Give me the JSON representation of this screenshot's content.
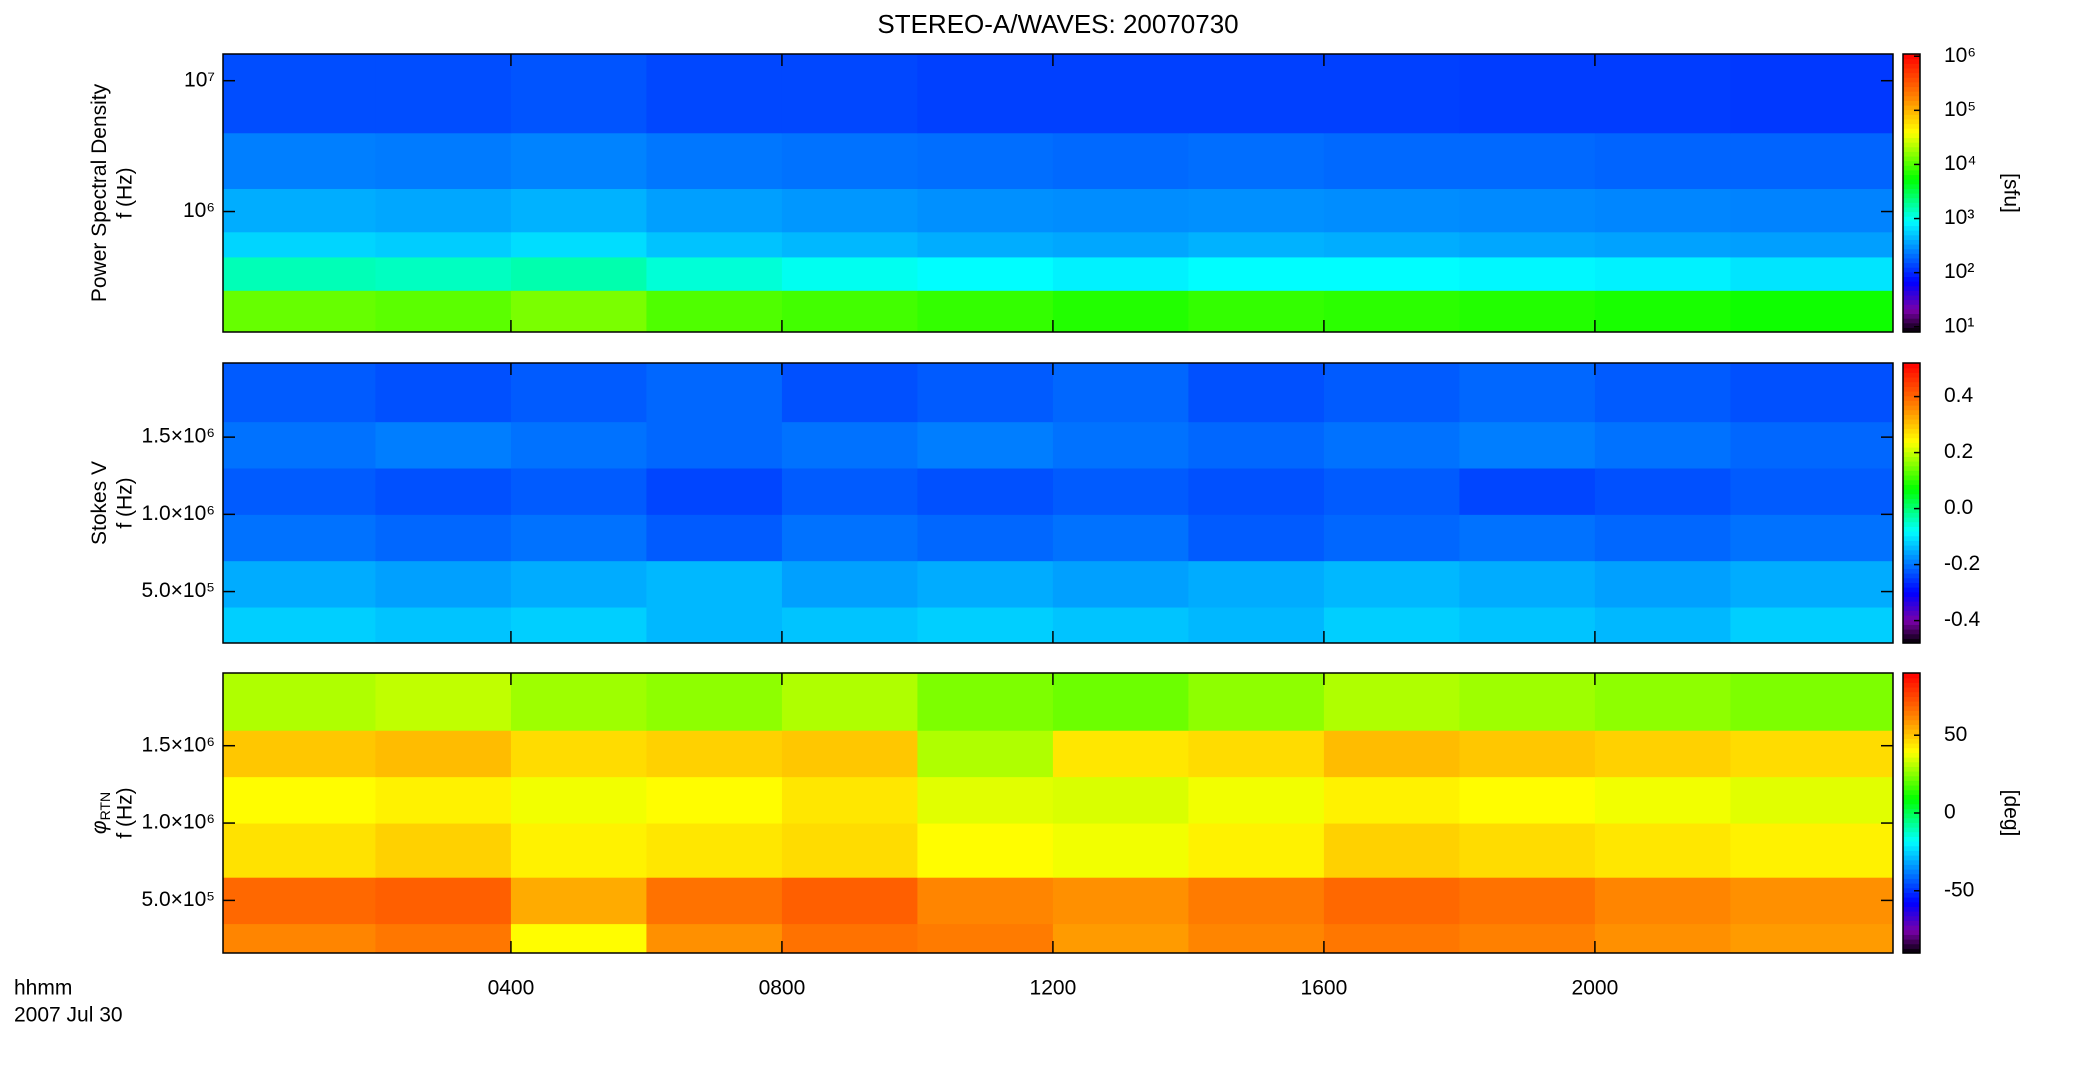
{
  "title": "STEREO-A/WAVES: 20070730",
  "x_axis": {
    "xlim": [
      -0.25,
      24.4
    ],
    "xticks": [
      {
        "value": 4,
        "label": "0400"
      },
      {
        "value": 8,
        "label": "0800"
      },
      {
        "value": 12,
        "label": "1200"
      },
      {
        "value": 16,
        "label": "1600"
      },
      {
        "value": 20,
        "label": "2000"
      }
    ],
    "xbins": [
      -0.25,
      2,
      4,
      6,
      8,
      10,
      12,
      14,
      16,
      18,
      20,
      22,
      24.4
    ],
    "label": "hhmm",
    "date": "2007 Jul 30"
  },
  "chart_data": [
    {
      "type": "heatmap",
      "quantity": "Power Spectral Density",
      "ylabel": "f (Hz)",
      "ylog": true,
      "ylim": [
        120000,
        16000000
      ],
      "yticks": [
        {
          "value": 1000000,
          "label": "10⁶"
        },
        {
          "value": 10000000,
          "label": "10⁷"
        }
      ],
      "ybins": [
        120000,
        250000,
        450000,
        700000,
        1500000,
        4000000,
        16000000
      ],
      "z": [
        [
          12000,
          11000,
          14000,
          10000,
          9000,
          8000,
          7000,
          8000,
          7500,
          7000,
          6500,
          6000
        ],
        [
          1500,
          1400,
          1600,
          1200,
          1000,
          900,
          800,
          900,
          900,
          850,
          800,
          700
        ],
        [
          600,
          550,
          650,
          500,
          450,
          400,
          380,
          420,
          400,
          380,
          360,
          350
        ],
        [
          400,
          380,
          420,
          350,
          320,
          300,
          290,
          300,
          290,
          280,
          270,
          260
        ],
        [
          250,
          240,
          260,
          230,
          220,
          210,
          200,
          210,
          200,
          200,
          190,
          190
        ],
        [
          150,
          150,
          160,
          140,
          140,
          130,
          130,
          130,
          130,
          125,
          125,
          120
        ]
      ],
      "colormap": "rainbow",
      "clog": true,
      "clim": [
        8,
        1100000
      ],
      "cticks": [
        {
          "value": 10,
          "label": "10¹"
        },
        {
          "value": 100,
          "label": "10²"
        },
        {
          "value": 1000,
          "label": "10³"
        },
        {
          "value": 10000,
          "label": "10⁴"
        },
        {
          "value": 100000,
          "label": "10⁵"
        },
        {
          "value": 1000000,
          "label": "10⁶"
        }
      ],
      "clabel": "[sfu]"
    },
    {
      "type": "heatmap",
      "quantity": "Stokes V",
      "ylabel": "f (Hz)",
      "ylog": false,
      "ylim": [
        167000,
        1980000
      ],
      "yticks": [
        {
          "value": 500000,
          "label": "5.0×10⁵"
        },
        {
          "value": 1000000,
          "label": "1.0×10⁶"
        },
        {
          "value": 1500000,
          "label": "1.5×10⁶"
        }
      ],
      "ybins": [
        167000,
        400000,
        700000,
        1000000,
        1300000,
        1600000,
        1980000
      ],
      "z": [
        [
          -0.12,
          -0.13,
          -0.12,
          -0.14,
          -0.13,
          -0.12,
          -0.13,
          -0.14,
          -0.12,
          -0.13,
          -0.14,
          -0.12
        ],
        [
          -0.15,
          -0.16,
          -0.15,
          -0.14,
          -0.16,
          -0.15,
          -0.16,
          -0.15,
          -0.14,
          -0.15,
          -0.16,
          -0.15
        ],
        [
          -0.2,
          -0.21,
          -0.2,
          -0.22,
          -0.2,
          -0.21,
          -0.2,
          -0.22,
          -0.21,
          -0.2,
          -0.21,
          -0.2
        ],
        [
          -0.22,
          -0.23,
          -0.22,
          -0.24,
          -0.22,
          -0.23,
          -0.22,
          -0.23,
          -0.22,
          -0.24,
          -0.23,
          -0.22
        ],
        [
          -0.2,
          -0.19,
          -0.2,
          -0.21,
          -0.2,
          -0.19,
          -0.2,
          -0.21,
          -0.2,
          -0.19,
          -0.2,
          -0.21
        ],
        [
          -0.22,
          -0.23,
          -0.22,
          -0.21,
          -0.23,
          -0.22,
          -0.21,
          -0.23,
          -0.22,
          -0.21,
          -0.22,
          -0.23
        ]
      ],
      "colormap": "rainbow",
      "clog": false,
      "clim": [
        -0.48,
        0.52
      ],
      "cticks": [
        -0.4,
        -0.2,
        {
          "value": 0,
          "label": "0.0"
        },
        0.2,
        0.4
      ]
    },
    {
      "type": "heatmap",
      "quantity": "φ",
      "quantity_sub": "RTN",
      "ylabel": "f (Hz)",
      "ylog": false,
      "ylim": [
        160000,
        1970000
      ],
      "yticks": [
        {
          "value": 500000,
          "label": "5.0×10⁵"
        },
        {
          "value": 1000000,
          "label": "1.0×10⁶"
        },
        {
          "value": 1500000,
          "label": "1.5×10⁶"
        }
      ],
      "ybins": [
        160000,
        350000,
        650000,
        1000000,
        1300000,
        1600000,
        1970000
      ],
      "z": [
        [
          62,
          65,
          40,
          60,
          66,
          64,
          58,
          62,
          65,
          63,
          60,
          58
        ],
        [
          68,
          70,
          55,
          66,
          70,
          62,
          60,
          64,
          68,
          66,
          62,
          60
        ],
        [
          45,
          48,
          42,
          44,
          46,
          40,
          38,
          42,
          48,
          46,
          44,
          42
        ],
        [
          40,
          42,
          38,
          40,
          44,
          36,
          35,
          38,
          42,
          40,
          38,
          36
        ],
        [
          50,
          52,
          46,
          48,
          50,
          30,
          44,
          46,
          52,
          50,
          48,
          46
        ],
        [
          30,
          32,
          28,
          26,
          30,
          24,
          22,
          26,
          30,
          28,
          26,
          24
        ]
      ],
      "colormap": "rainbow",
      "clog": false,
      "clim": [
        -90,
        90
      ],
      "cticks": [
        -50,
        0,
        50
      ],
      "clabel": "[deg]"
    }
  ]
}
